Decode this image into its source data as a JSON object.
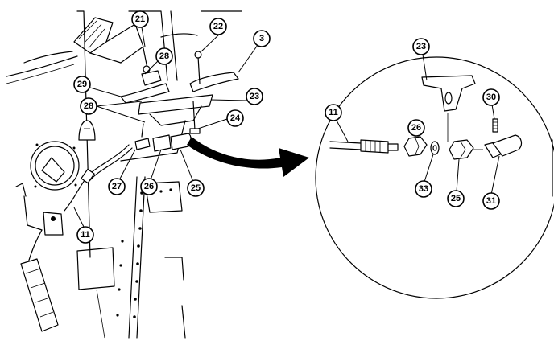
{
  "figure": {
    "callouts": {
      "c21": "21",
      "c22": "22",
      "c3": "3",
      "c28a": "28",
      "c29": "29",
      "c28b": "28",
      "c23a": "23",
      "c24": "24",
      "c27": "27",
      "c26a": "26",
      "c25a": "25",
      "c11a": "11",
      "c23b": "23",
      "c30": "30",
      "c11b": "11",
      "c26b": "26",
      "c33": "33",
      "c25b": "25",
      "c31": "31"
    }
  }
}
